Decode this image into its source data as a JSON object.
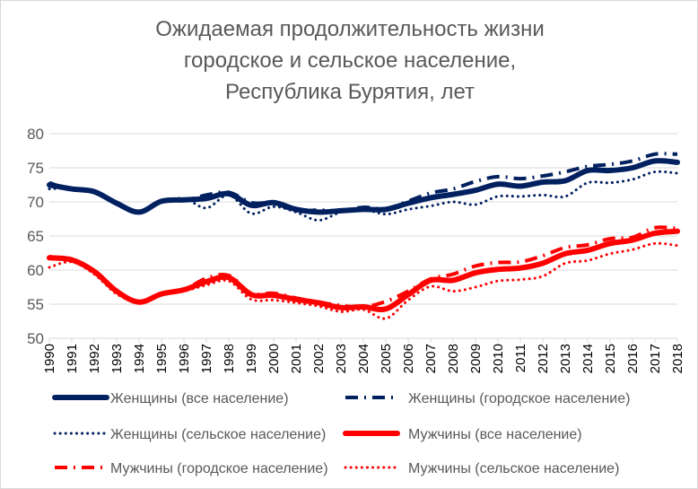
{
  "chart_data": {
    "type": "line",
    "title_lines": [
      "Ожидаемая продолжительность жизни",
      "городское и сельское население,",
      "Республика Бурятия, лет"
    ],
    "xlabel": "",
    "ylabel": "",
    "x": [
      "1990",
      "1991",
      "1992",
      "1993",
      "1994",
      "1995",
      "1996",
      "1997",
      "1998",
      "1999",
      "2000",
      "2001",
      "2002",
      "2003",
      "2004",
      "2005",
      "2006",
      "2007",
      "2008",
      "2009",
      "2010",
      "2011",
      "2012",
      "2013",
      "2014",
      "2015",
      "2016",
      "2017",
      "2018"
    ],
    "ylim": [
      50,
      80
    ],
    "yticks": [
      "50",
      "55",
      "60",
      "65",
      "70",
      "75",
      "80"
    ],
    "grid": "horizontal",
    "legend_position": "bottom",
    "series": [
      {
        "name": "Женщины (все население)",
        "color": "#002060",
        "style": "solid",
        "values": [
          72.5,
          71.9,
          71.5,
          69.8,
          68.5,
          70.1,
          70.3,
          70.5,
          71.2,
          69.5,
          69.9,
          68.9,
          68.5,
          68.7,
          68.9,
          68.9,
          69.8,
          70.6,
          71.1,
          71.7,
          72.6,
          72.3,
          72.9,
          73.1,
          74.6,
          74.6,
          75.0,
          76.0,
          75.8
        ]
      },
      {
        "name": "Женщины (городское население)",
        "color": "#002060",
        "style": "dash",
        "values": [
          72.8,
          71.8,
          71.6,
          69.7,
          68.4,
          70.2,
          70.2,
          71.0,
          71.4,
          69.9,
          69.8,
          68.7,
          68.8,
          68.7,
          69.2,
          69.0,
          70.1,
          71.3,
          71.9,
          73.0,
          73.7,
          73.4,
          73.8,
          74.4,
          75.2,
          75.5,
          76.0,
          77.0,
          77.0
        ]
      },
      {
        "name": "Женщины (сельское население)",
        "color": "#002060",
        "style": "dot",
        "values": [
          71.9,
          72.0,
          71.4,
          69.9,
          68.6,
          69.9,
          70.5,
          69.1,
          71.0,
          68.3,
          69.3,
          68.5,
          67.3,
          68.5,
          68.9,
          68.2,
          68.9,
          69.4,
          70.0,
          69.6,
          70.8,
          70.8,
          71.0,
          70.8,
          72.8,
          72.8,
          73.3,
          74.4,
          74.2
        ]
      },
      {
        "name": "Мужчины (все население)",
        "color": "#ff0000",
        "style": "solid",
        "values": [
          61.8,
          61.5,
          59.8,
          56.9,
          55.3,
          56.5,
          57.1,
          58.3,
          58.9,
          56.4,
          56.3,
          55.7,
          55.2,
          54.5,
          54.6,
          54.3,
          56.4,
          58.5,
          58.5,
          59.6,
          60.1,
          60.3,
          61.0,
          62.4,
          62.9,
          63.9,
          64.4,
          65.4,
          65.7
        ]
      },
      {
        "name": "Мужчины (городское население)",
        "color": "#ff0000",
        "style": "dash",
        "values": [
          62.0,
          61.4,
          59.9,
          57.0,
          55.2,
          56.5,
          57.1,
          58.8,
          59.2,
          56.6,
          56.6,
          55.9,
          55.3,
          54.8,
          54.6,
          55.4,
          56.9,
          58.7,
          59.4,
          60.6,
          61.1,
          61.2,
          62.1,
          63.3,
          63.7,
          64.6,
          64.8,
          66.2,
          66.1
        ]
      },
      {
        "name": "Мужчины (сельское население)",
        "color": "#ff0000",
        "style": "dot",
        "values": [
          60.4,
          61.2,
          59.4,
          56.5,
          55.3,
          56.3,
          56.9,
          57.8,
          58.4,
          55.7,
          55.6,
          55.2,
          54.7,
          53.9,
          54.2,
          52.9,
          55.6,
          57.6,
          56.9,
          57.5,
          58.4,
          58.6,
          59.1,
          61.0,
          61.4,
          62.4,
          63.0,
          63.9,
          63.6
        ]
      }
    ]
  }
}
